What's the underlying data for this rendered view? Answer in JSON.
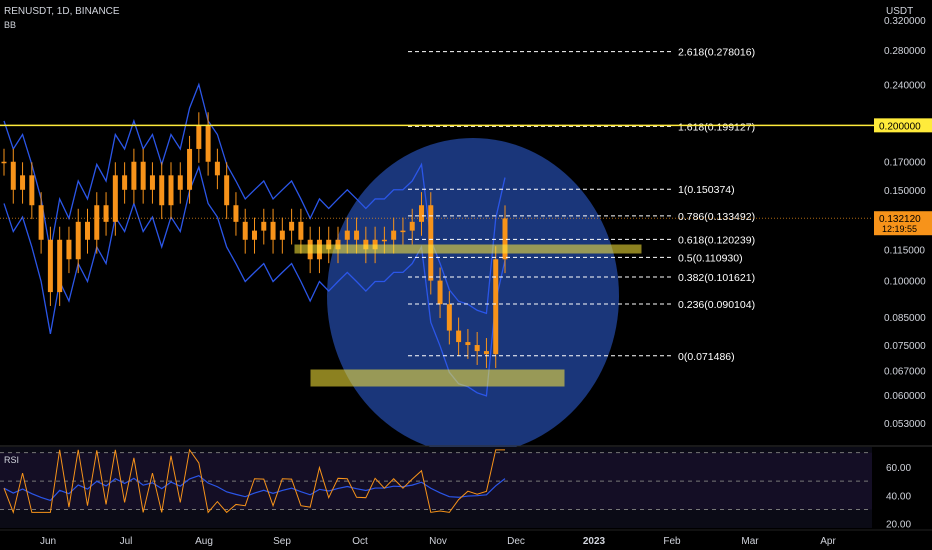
{
  "header": {
    "symbol": "RENUSDT, 1D, BINANCE",
    "indicator": "BB",
    "rsi_label": "RSI",
    "unit": "USDT"
  },
  "colors": {
    "background": "#000000",
    "candle": "#f7931a",
    "bollinger": "#2b56e8",
    "fib_line": "#ffffff",
    "highlight": "#ffeb3b",
    "circle": "#1e3f8f",
    "rsi_line": "#f7931a",
    "rsi_ma": "#2b56e8",
    "price_tag": "#f7931a",
    "level_tag": "#ffeb3b"
  },
  "price_axis": {
    "ticks": [
      "0.320000",
      "0.280000",
      "0.240000",
      "0.200000",
      "0.170000",
      "0.150000",
      "0.130000",
      "0.115000",
      "0.100000",
      "0.085000",
      "0.075000",
      "0.067000",
      "0.060000",
      "0.053000"
    ],
    "tick_values": [
      0.32,
      0.28,
      0.24,
      0.2,
      0.17,
      0.15,
      0.13,
      0.115,
      0.1,
      0.085,
      0.075,
      0.067,
      0.06,
      0.053
    ],
    "scale": "log",
    "range": [
      0.048,
      0.35
    ],
    "level_tag": "0.200000",
    "level_value": 0.2,
    "current_price_tag": "0.132120",
    "countdown": "12:19:55",
    "current_price": 0.13212
  },
  "rsi_axis": {
    "ticks": [
      "60.00",
      "40.00",
      "20.00"
    ],
    "tick_values": [
      60,
      40,
      20
    ],
    "range": [
      17,
      74
    ],
    "bands": [
      30,
      50,
      70
    ]
  },
  "time_axis": {
    "labels": [
      "Jun",
      "Jul",
      "Aug",
      "Sep",
      "Oct",
      "Nov",
      "Dec",
      "2023",
      "Feb",
      "Mar",
      "Apr"
    ]
  },
  "chart_data": {
    "type": "candlestick",
    "fibonacci": {
      "levels": [
        {
          "label": "2.618(0.278016)",
          "ratio": 2.618,
          "price": 0.278016
        },
        {
          "label": "1.618(0.199127)",
          "ratio": 1.618,
          "price": 0.199127
        },
        {
          "label": "1(0.150374)",
          "ratio": 1,
          "price": 0.150374
        },
        {
          "label": "0.786(0.133492)",
          "ratio": 0.786,
          "price": 0.133492
        },
        {
          "label": "0.618(0.120239)",
          "ratio": 0.618,
          "price": 0.120239
        },
        {
          "label": "0.5(0.110930)",
          "ratio": 0.5,
          "price": 0.11093
        },
        {
          "label": "0.382(0.101621)",
          "ratio": 0.382,
          "price": 0.101621
        },
        {
          "label": "0.236(0.090104)",
          "ratio": 0.236,
          "price": 0.090104
        },
        {
          "label": "0(0.071486)",
          "ratio": 0,
          "price": 0.071486
        }
      ]
    },
    "price_series": [
      0.17,
      0.15,
      0.16,
      0.14,
      0.12,
      0.095,
      0.12,
      0.11,
      0.13,
      0.12,
      0.14,
      0.13,
      0.16,
      0.15,
      0.17,
      0.15,
      0.16,
      0.14,
      0.16,
      0.15,
      0.18,
      0.2,
      0.17,
      0.16,
      0.14,
      0.13,
      0.12,
      0.125,
      0.13,
      0.12,
      0.125,
      0.13,
      0.12,
      0.11,
      0.12,
      0.115,
      0.12,
      0.125,
      0.12,
      0.115,
      0.12,
      0.12,
      0.125,
      0.125,
      0.13,
      0.14,
      0.1,
      0.09,
      0.08,
      0.076,
      0.075,
      0.073,
      0.072,
      0.11,
      0.132
    ]
  }
}
